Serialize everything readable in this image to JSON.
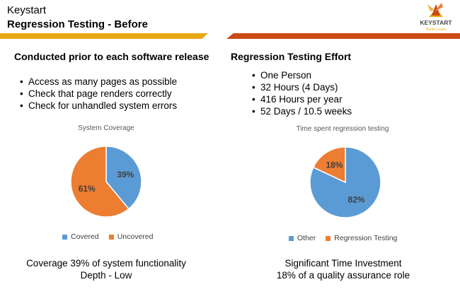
{
  "header": {
    "company": "Keystart",
    "title": "Regression Testing - Before",
    "logo_text": "KEYSTART",
    "logo_subtext": "Home Loans"
  },
  "left": {
    "heading": "Conducted prior to each software release",
    "bullets": [
      "Access as many pages as possible",
      "Check that page renders correctly",
      "Check for unhandled system errors"
    ],
    "footer": [
      "Coverage 39% of system functionality",
      "Depth - Low"
    ]
  },
  "right": {
    "heading": "Regression Testing Effort",
    "bullets": [
      "One Person",
      "32 Hours (4 Days)",
      "416 Hours per year",
      "52 Days / 10.5 weeks"
    ],
    "footer": [
      "Significant Time Investment",
      "18% of a quality assurance role"
    ]
  },
  "chart_data": [
    {
      "type": "pie",
      "title": "System Coverage",
      "categories": [
        "Covered",
        "Uncovered"
      ],
      "values": [
        39,
        61
      ],
      "labels": [
        "39%",
        "61%"
      ],
      "colors": [
        "#5b9bd5",
        "#ed7d31"
      ],
      "legend": "bottom"
    },
    {
      "type": "pie",
      "title": "Time spent regression testing",
      "categories": [
        "Other",
        "Regression Testing"
      ],
      "values": [
        82,
        18
      ],
      "labels": [
        "82%",
        "18%"
      ],
      "colors": [
        "#5b9bd5",
        "#ed7d31"
      ],
      "legend": "bottom"
    }
  ]
}
